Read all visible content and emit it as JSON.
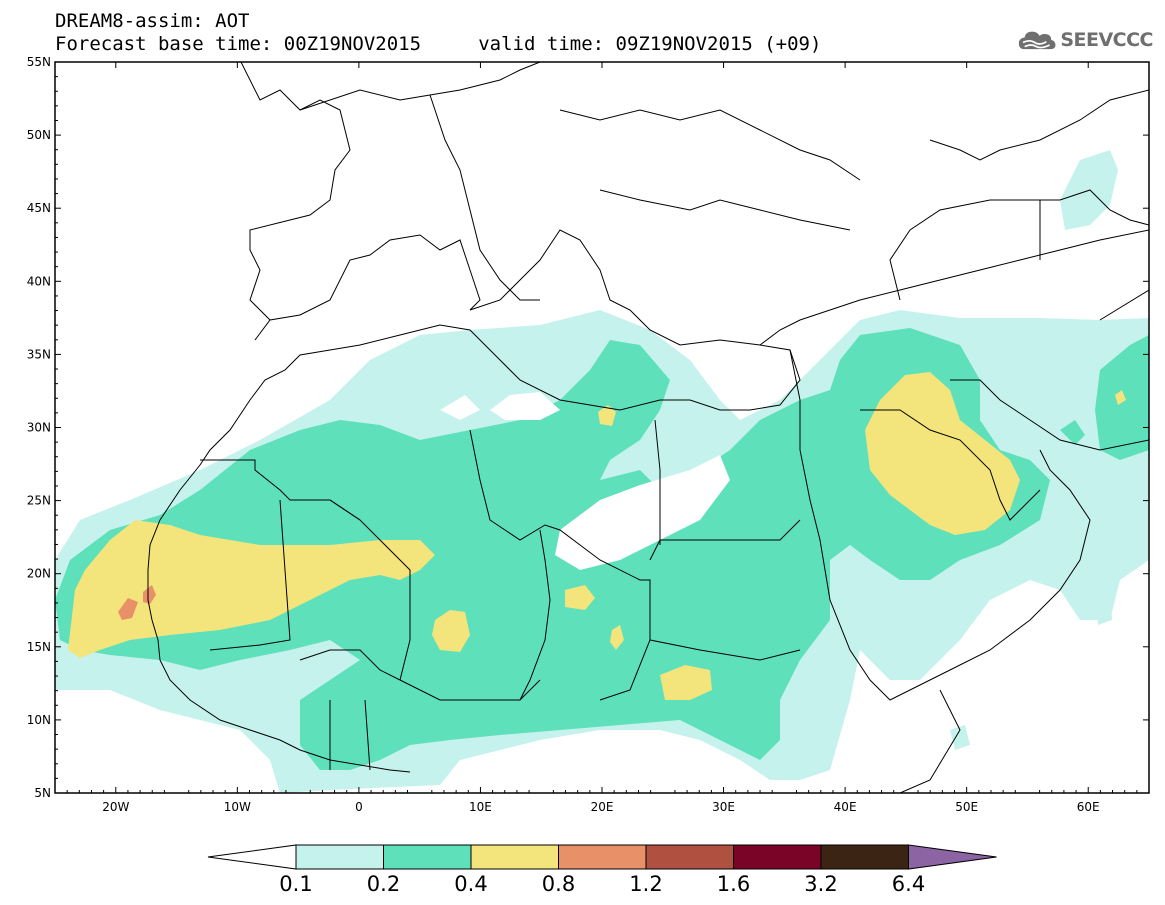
{
  "header": {
    "title_line1": "DREAM8-assim: AOT",
    "title_line2": "Forecast base time: 00Z19NOV2015     valid time: 09Z19NOV2015 (+09)"
  },
  "logo": {
    "text": "SEEVCCC",
    "icon": "cloud-icon"
  },
  "map": {
    "lon_range": [
      -25,
      65
    ],
    "lat_range": [
      5,
      55
    ],
    "lat_ticks": [
      "55N",
      "50N",
      "45N",
      "40N",
      "35N",
      "30N",
      "25N",
      "20N",
      "15N",
      "10N",
      "5N"
    ],
    "lon_ticks": [
      "20W",
      "10W",
      "0",
      "10E",
      "20E",
      "30E",
      "40E",
      "50E",
      "60E"
    ]
  },
  "colorbar": {
    "labels": [
      "0.1",
      "0.2",
      "0.4",
      "0.8",
      "1.2",
      "1.6",
      "3.2",
      "6.4"
    ],
    "colors": [
      "#c5f2ec",
      "#5ee0bb",
      "#f4e47c",
      "#e89068",
      "#b05040",
      "#7a0428",
      "#3c2414",
      "#8c64a4"
    ]
  },
  "colors": {
    "level1": "#c5f2ec",
    "level2": "#5ee0bb",
    "level3": "#f4e47c",
    "level4": "#e89068",
    "borders": "#000000"
  }
}
